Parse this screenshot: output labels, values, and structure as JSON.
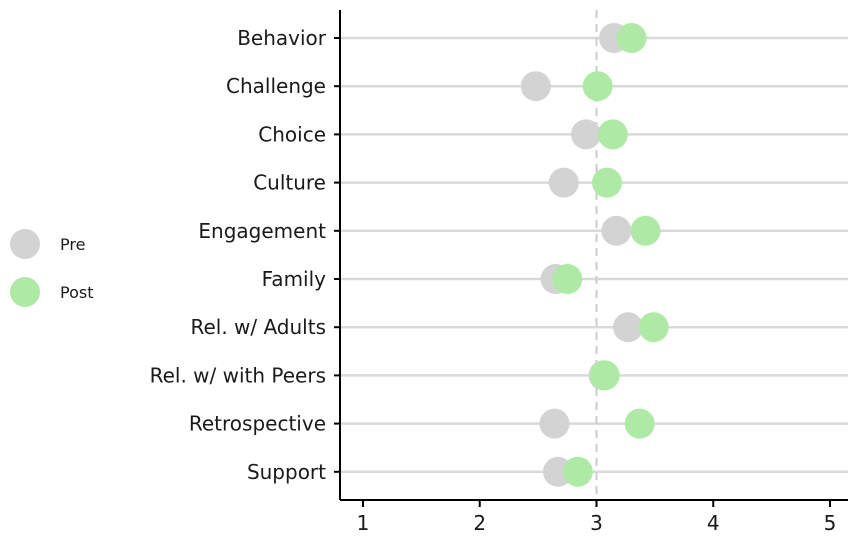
{
  "chart_data": {
    "type": "scatter",
    "title": "",
    "xlabel": "",
    "ylabel": "",
    "xlim": [
      0.8,
      5.0
    ],
    "xticks": [
      1,
      2,
      3,
      4,
      5
    ],
    "reference_line": 3,
    "grid": "horizontal",
    "legend_placement": "left",
    "categories": [
      "Behavior",
      "Challenge",
      "Choice",
      "Culture",
      "Engagement",
      "Family",
      "Rel. w/ Adults",
      "Rel. w/ with Peers",
      "Retrospective",
      "Support"
    ],
    "series": [
      {
        "name": "Pre",
        "color": "#d3d3d3",
        "values": [
          3.15,
          2.48,
          2.91,
          2.72,
          3.17,
          2.65,
          3.27,
          3.06,
          2.64,
          2.67
        ]
      },
      {
        "name": "Post",
        "color": "#aeeaa6",
        "values": [
          3.3,
          3.01,
          3.14,
          3.09,
          3.42,
          2.75,
          3.49,
          3.07,
          3.37,
          2.84
        ]
      }
    ]
  }
}
